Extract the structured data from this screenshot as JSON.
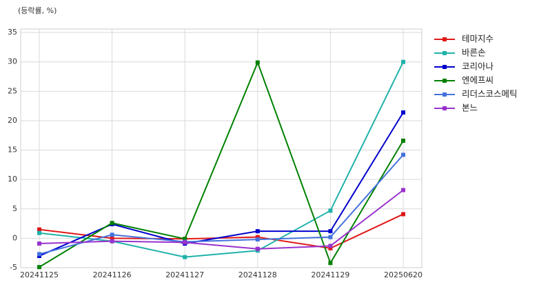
{
  "chart_data": {
    "type": "line",
    "y_label": "(등락률, %)",
    "categories": [
      "20241125",
      "20241126",
      "20241127",
      "20241128",
      "20241129",
      "20250620"
    ],
    "series": [
      {
        "name": "테마지수",
        "color": "#e01818",
        "values": [
          1.5,
          0,
          -0.1,
          0.2,
          -1.7,
          4.1
        ]
      },
      {
        "name": "바른손",
        "color": "#20b2aa",
        "values": [
          0.9,
          -0.5,
          -3.2,
          -2.1,
          4.7,
          30.0
        ]
      },
      {
        "name": "코리아나",
        "color": "#0000cd",
        "values": [
          -3.0,
          2.4,
          -0.9,
          1.2,
          1.2,
          21.4
        ]
      },
      {
        "name": "엔에프씨",
        "color": "#008000",
        "values": [
          -4.9,
          2.6,
          -0.1,
          29.9,
          -4.2,
          16.6
        ]
      },
      {
        "name": "리더스코스메틱",
        "color": "#4472dd",
        "values": [
          -2.7,
          0.6,
          -0.6,
          -0.2,
          0.2,
          14.2
        ]
      },
      {
        "name": "본느",
        "color": "#9932cc",
        "values": [
          -0.9,
          -0.5,
          -0.7,
          -1.8,
          -1.3,
          8.2
        ]
      }
    ],
    "ylim": [
      -5,
      35.6
    ],
    "yticks": [
      -5,
      0,
      5,
      10,
      15,
      20,
      25,
      30,
      35
    ],
    "grid": true,
    "legend": "outside-right"
  }
}
